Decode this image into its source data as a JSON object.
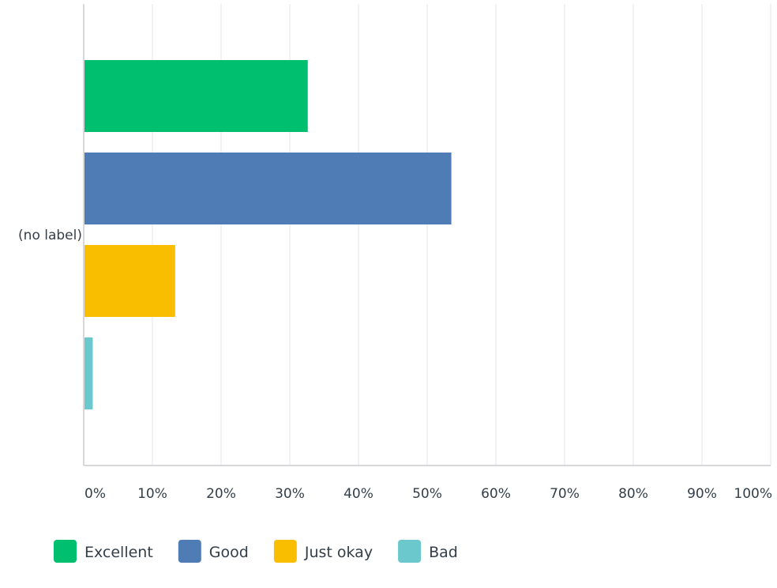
{
  "chart_data": {
    "type": "bar",
    "orientation": "horizontal",
    "categories": [
      "(no label)"
    ],
    "series": [
      {
        "name": "Excellent",
        "values": [
          32.5
        ],
        "color": "#00bf6f"
      },
      {
        "name": "Good",
        "values": [
          53.4
        ],
        "color": "#507cb6"
      },
      {
        "name": "Just okay",
        "values": [
          13.2
        ],
        "color": "#f9be00"
      },
      {
        "name": "Bad",
        "values": [
          1.2
        ],
        "color": "#6bc8cd"
      }
    ],
    "xlim": [
      0,
      100
    ],
    "x_ticks": [
      "0%",
      "10%",
      "20%",
      "30%",
      "40%",
      "50%",
      "60%",
      "70%",
      "80%",
      "90%",
      "100%"
    ],
    "grid": true,
    "legend_position": "bottom-left"
  }
}
